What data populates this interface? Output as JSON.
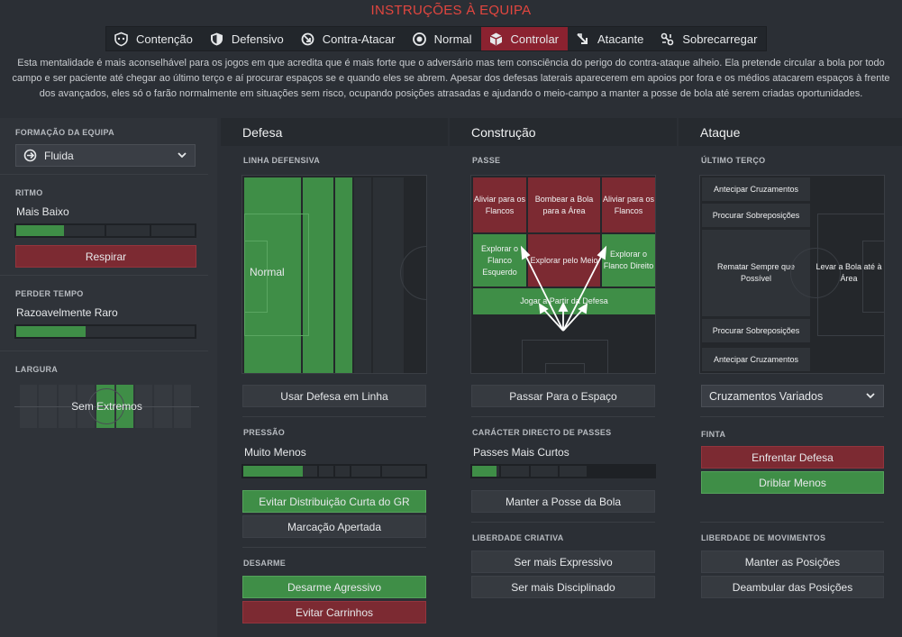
{
  "title": "INSTRUÇÕES À EQUIPA",
  "mentalities": [
    {
      "label": "Contenção",
      "icon": "shield-dots-icon"
    },
    {
      "label": "Defensivo",
      "icon": "shield-icon"
    },
    {
      "label": "Contra-Atacar",
      "icon": "counter-arrow-icon"
    },
    {
      "label": "Normal",
      "icon": "circle-dot-icon"
    },
    {
      "label": "Controlar",
      "icon": "cube-icon",
      "active": true
    },
    {
      "label": "Atacante",
      "icon": "attack-arrow-icon"
    },
    {
      "label": "Sobrecarregar",
      "icon": "overload-icon"
    }
  ],
  "description": "Esta mentalidade é mais aconselhável para os jogos em que acredita que é mais forte que o adversário mas tem consciência do perigo do contra-ataque alheio. Ela pretende circular a bola por todo campo e ser paciente até chegar ao último terço e aí procurar espaços se e quando eles se abrem. Apesar dos defesas laterais aparecerem em apoios por fora e os médios atacarem espaços à frente dos avançados, eles só o farão normalmente em situações sem risco, ocupando posições atrasadas e ajudando o meio-campo a manter a posse de bola até serem criadas oportunidades.",
  "colors": {
    "accent_red": "#e2463f",
    "active_tab": "#8b2230",
    "green": "#3f8e47",
    "red": "#7c2a32"
  },
  "left": {
    "formation_label": "FORMAÇÃO DA EQUIPA",
    "formation_value": "Fluida",
    "ritmo_label": "RITMO",
    "ritmo_value": "Mais Baixo",
    "ritmo_level": 0.28,
    "respirar_label": "Respirar",
    "perder_label": "PERDER TEMPO",
    "perder_value": "Razoavelmente Raro",
    "perder_level": 0.4,
    "largura_label": "LARGURA",
    "largura_value": "Sem Extremos"
  },
  "defesa": {
    "header": "Defesa",
    "linha_label": "LINHA DEFENSIVA",
    "linha_value": "Normal",
    "usar_defesa": "Usar Defesa em Linha",
    "pressao_label": "PRESSÃO",
    "pressao_value": "Muito Menos",
    "pressao_level": 0.34,
    "evitar_gr": "Evitar Distribuição Curta do GR",
    "marcacao": "Marcação Apertada",
    "desarme_label": "DESARME",
    "desarme_agressivo": "Desarme Agressivo",
    "evitar_carrinhos": "Evitar Carrinhos"
  },
  "construcao": {
    "header": "Construção",
    "passe_label": "PASSE",
    "zones": {
      "aliviar": "Aliviar para os Flancos",
      "bombear": "Bombear a Bola para a Área",
      "aliviar2": "Aliviar para os Flancos",
      "explorar_esq": "Explorar o Flanco Esquerdo",
      "explorar_meio": "Explorar pelo Meio",
      "explorar_dir": "Explorar o Flanco Direito",
      "jogar_defesa": "Jogar a Partir da Defesa"
    },
    "passar_espaco": "Passar Para o Espaço",
    "caracter_label": "CARÁCTER DIRECTO DE PASSES",
    "caracter_value": "Passes Mais Curtos",
    "caracter_level": 0.15,
    "manter_posse": "Manter a Posse da Bola",
    "liberdade_label": "LIBERDADE CRIATIVA",
    "expressivo": "Ser mais Expressivo",
    "disciplinado": "Ser mais Disciplinado"
  },
  "ataque": {
    "header": "Ataque",
    "ultimo_label": "ÚLTIMO TERÇO",
    "zones": {
      "antecipar1": "Antecipar Cruzamentos",
      "procurar1": "Procurar Sobreposições",
      "rematar": "Rematar Sempre que Possível",
      "levar": "Levar a Bola até à Área",
      "procurar2": "Procurar Sobreposições",
      "antecipar2": "Antecipar Cruzamentos"
    },
    "cruzamentos_value": "Cruzamentos Variados",
    "finta_label": "FINTA",
    "enfrentar": "Enfrentar Defesa",
    "driblar": "Driblar Menos",
    "movimentos_label": "LIBERDADE DE MOVIMENTOS",
    "manter_posicoes": "Manter as Posições",
    "deambular": "Deambular das Posições"
  }
}
